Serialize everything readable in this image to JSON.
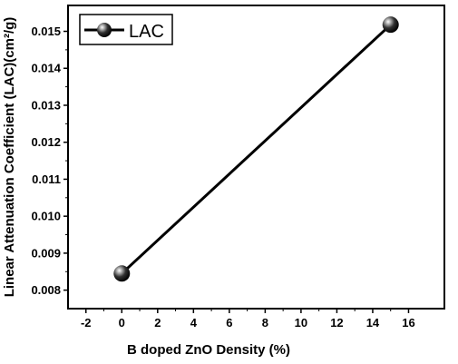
{
  "chart_data": {
    "type": "line",
    "xlabel": "B doped ZnO Density (%)",
    "ylabel": "Linear Attenuation Coefficient (LAC)(cm²/g)",
    "xlim": [
      -3,
      18
    ],
    "ylim": [
      0.0075,
      0.0157
    ],
    "x_ticks": [
      "-2",
      "0",
      "2",
      "4",
      "6",
      "8",
      "10",
      "12",
      "14",
      "16"
    ],
    "y_ticks": [
      "0.008",
      "0.009",
      "0.010",
      "0.011",
      "0.012",
      "0.013",
      "0.014",
      "0.015"
    ],
    "grid": false,
    "legend_position": "top-left",
    "series": [
      {
        "name": "LAC",
        "x": [
          0,
          15
        ],
        "y": [
          0.00845,
          0.01518
        ],
        "color": "#000000"
      }
    ]
  }
}
